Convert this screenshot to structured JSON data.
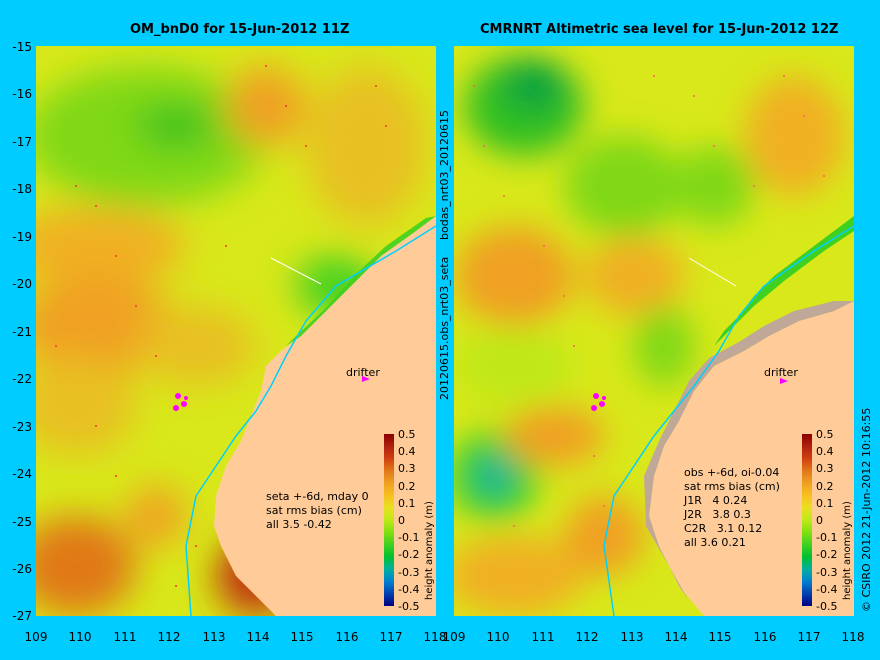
{
  "left_panel": {
    "title": "OM_bnD0 for 15-Jun-2012 11Z",
    "stats": "seta +-6d, mday 0\nsat rms bias (cm)\nall 3.5 -0.42",
    "side_label": "20120615.obs_nrt03_seta"
  },
  "right_panel": {
    "title": "CMRNRT Altimetric sea level  for 15-Jun-2012 12Z",
    "stats": "obs +-6d, oi-0.04\nsat rms bias (cm)\nJ1R   4 0.24\nJ2R   3.8 0.3\nC2R   3.1 0.12\nall 3.6 0.21",
    "side_label": "bodas_nrt03_20120615"
  },
  "drifter_label": "drifter",
  "colorbar": {
    "label": "height anomaly (m)",
    "ticks": [
      "0.5",
      "0.4",
      "0.3",
      "0.2",
      "0.1",
      "0",
      "-0.1",
      "-0.2",
      "-0.3",
      "-0.4",
      "-0.5"
    ],
    "colors": [
      "#8b0000",
      "#b02010",
      "#d04010",
      "#e07818",
      "#f0a020",
      "#f8c020",
      "#e8e020",
      "#c0e818",
      "#80e010",
      "#40d020",
      "#00c030",
      "#00b0a0",
      "#0080d0",
      "#0040b0",
      "#000080"
    ]
  },
  "axes": {
    "y_ticks": [
      "-15",
      "-16",
      "-17",
      "-18",
      "-19",
      "-20",
      "-21",
      "-22",
      "-23",
      "-24",
      "-25",
      "-26",
      "-27"
    ],
    "x_ticks": [
      "109",
      "110",
      "111",
      "112",
      "113",
      "114",
      "115",
      "116",
      "117",
      "118"
    ]
  },
  "copyright": "© CSIRO 2012   21-Jun-2012 10:16:55",
  "colors": {
    "land": "#ffcc99",
    "land_mask": "#c0a898",
    "track": "#00d0ff",
    "background": "#00ccff",
    "drifter": "#ff00ff"
  }
}
